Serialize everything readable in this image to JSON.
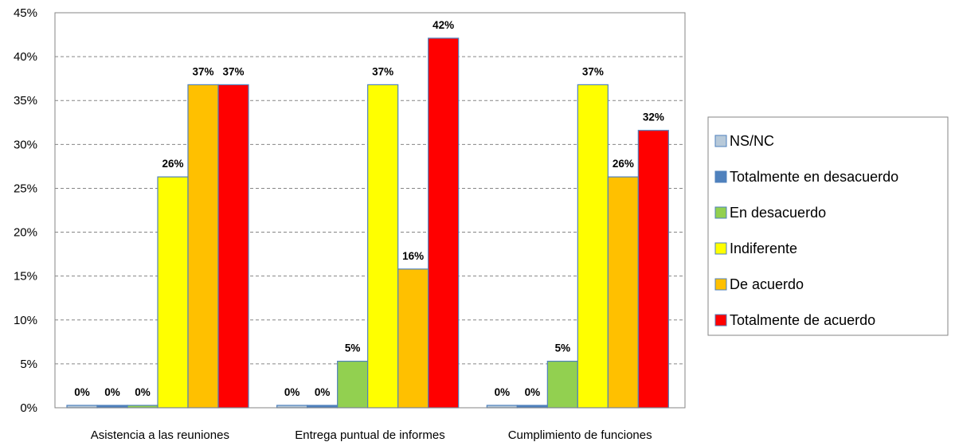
{
  "chart_data": {
    "type": "bar",
    "categories": [
      "Asistencia a las reuniones",
      "Entrega puntual de informes",
      "Cumplimiento de funciones"
    ],
    "series": [
      {
        "name": "NS/NC",
        "color": "#b7c9d9",
        "values": [
          0,
          0,
          0
        ],
        "labels": [
          "0%",
          "0%",
          "0%"
        ]
      },
      {
        "name": "Totalmente en desacuerdo",
        "color": "#4f81bd",
        "values": [
          0,
          0,
          0
        ],
        "labels": [
          "0%",
          "0%",
          "0%"
        ]
      },
      {
        "name": "En desacuerdo",
        "color": "#92d050",
        "values": [
          0,
          5.3,
          5.3
        ],
        "labels": [
          "0%",
          "5%",
          "5%"
        ]
      },
      {
        "name": "Indiferente",
        "color": "#ffff00",
        "values": [
          26.3,
          36.8,
          36.8
        ],
        "labels": [
          "26%",
          "37%",
          "37%"
        ]
      },
      {
        "name": "De acuerdo",
        "color": "#ffc000",
        "values": [
          36.8,
          15.8,
          26.3
        ],
        "labels": [
          "37%",
          "16%",
          "26%"
        ]
      },
      {
        "name": "Totalmente de acuerdo",
        "color": "#ff0000",
        "values": [
          36.8,
          42.1,
          31.6
        ],
        "labels": [
          "37%",
          "42%",
          "32%"
        ]
      }
    ],
    "ylim": [
      0,
      45
    ],
    "ytick_step": 5,
    "ytick_format": "percent",
    "grid": true,
    "legend_position": "right",
    "xlabel": "",
    "ylabel": "",
    "title": ""
  }
}
